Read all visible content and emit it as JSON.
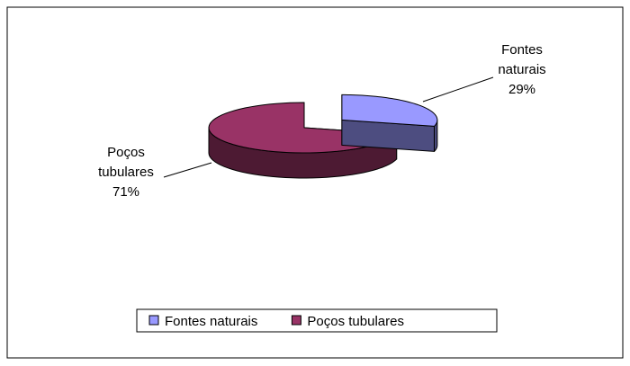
{
  "chart_data": {
    "type": "pie",
    "categories": [
      "Fontes naturais",
      "Poços tubulares"
    ],
    "values": [
      29,
      71
    ],
    "value_labels": [
      "29%",
      "71%"
    ],
    "colors": [
      "#9999ff",
      "#993366"
    ],
    "legend": "bottom"
  }
}
